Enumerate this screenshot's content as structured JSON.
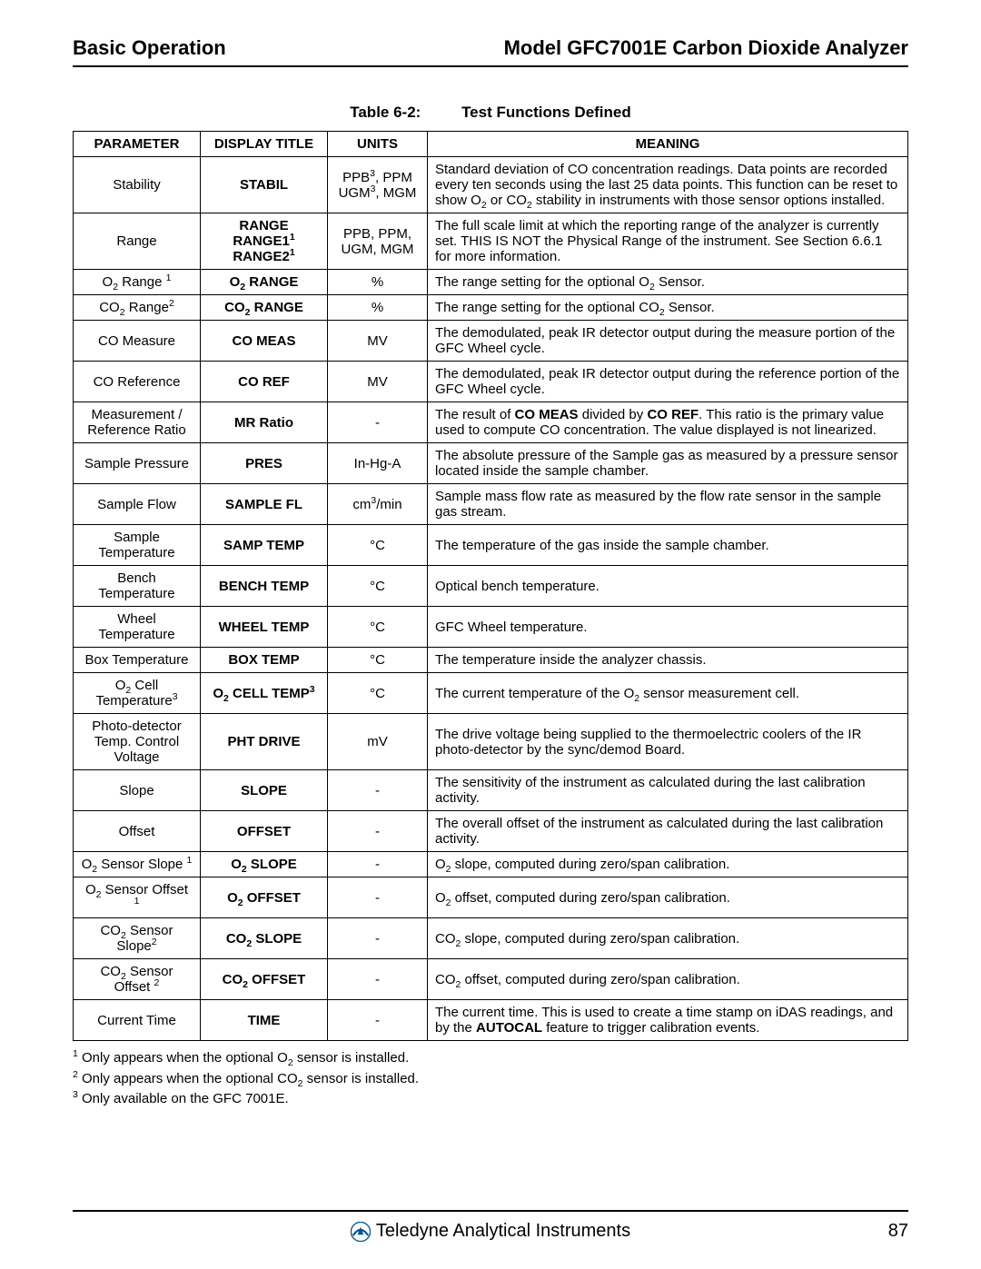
{
  "header": {
    "left": "Basic Operation",
    "right": "Model GFC7001E Carbon Dioxide Analyzer"
  },
  "table": {
    "label": "Table 6-2:",
    "title": "Test Functions Defined",
    "columns": [
      "PARAMETER",
      "DISPLAY TITLE",
      "UNITS",
      "MEANING"
    ],
    "rows": [
      {
        "parameter": "Stability",
        "display": "STABIL",
        "units": "PPB<sup>3</sup>, PPM UGM<sup>3</sup>, MGM",
        "meaning": "Standard deviation of CO concentration readings.  Data points are recorded every ten seconds using the last 25 data points.  This function can be reset to show O<sub>2</sub> or CO<sub>2</sub> stability in instruments with those sensor options installed."
      },
      {
        "parameter": "Range",
        "display": "RANGE<br>RANGE1<sup>1</sup><br>RANGE2<sup>1</sup>",
        "units": "PPB, PPM, UGM, MGM",
        "meaning": "The full scale limit at which the reporting range of the analyzer is currently set.  THIS IS NOT the Physical Range of the instrument.  See Section 6.6.1 for more information."
      },
      {
        "parameter": "O<sub>2</sub> Range <sup>1</sup>",
        "display": "O<sub>2</sub> RANGE",
        "units": "%",
        "meaning": "The range setting for the optional O<sub>2</sub> Sensor."
      },
      {
        "parameter": "CO<sub>2</sub> Range<sup>2</sup>",
        "display": "CO<sub>2</sub> RANGE",
        "units": "%",
        "meaning": "The range setting for the optional CO<sub>2</sub> Sensor."
      },
      {
        "parameter": "CO Measure",
        "display": "CO MEAS",
        "units": "MV",
        "meaning": "The demodulated, peak IR detector output during the measure portion of the GFC Wheel cycle."
      },
      {
        "parameter": "CO Reference",
        "display": "CO REF",
        "units": "MV",
        "meaning": "The demodulated, peak IR detector output during the reference portion of the GFC Wheel cycle."
      },
      {
        "parameter": "Measurement / Reference Ratio",
        "display": "MR Ratio",
        "units": "-",
        "meaning": "The result of <b>CO MEAS</b> divided by <b>CO REF</b>.  This ratio is the primary value used to compute CO concentration.  The value displayed is not linearized."
      },
      {
        "parameter": "Sample Pressure",
        "display": "PRES",
        "units": "In-Hg-A",
        "meaning": "The absolute pressure of the Sample gas as measured by a pressure sensor located inside the sample chamber."
      },
      {
        "parameter": "Sample Flow",
        "display": "SAMPLE FL",
        "units": "cm<sup>3</sup>/min",
        "meaning": "Sample mass flow rate as measured by the flow rate sensor in the sample gas stream."
      },
      {
        "parameter": "Sample Temperature",
        "display": "SAMP TEMP",
        "units": "°C",
        "meaning": "The temperature of the gas inside the sample chamber."
      },
      {
        "parameter": "Bench Temperature",
        "display": "BENCH TEMP",
        "units": "°C",
        "meaning": "Optical bench temperature."
      },
      {
        "parameter": "Wheel Temperature",
        "display": "WHEEL TEMP",
        "units": "°C",
        "meaning": "GFC Wheel temperature."
      },
      {
        "parameter": "Box Temperature",
        "display": "BOX TEMP",
        "units": "°C",
        "meaning": "The temperature inside the analyzer chassis."
      },
      {
        "parameter": "O<sub>2</sub> Cell Temperature<sup>3</sup>",
        "display": "O<sub>2</sub> CELL TEMP<sup>3</sup>",
        "units": "°C",
        "meaning": "The current temperature of the O<sub>2</sub> sensor measurement cell."
      },
      {
        "parameter": "Photo-detector Temp. Control Voltage",
        "display": "PHT DRIVE",
        "units": "mV",
        "meaning": "The drive voltage being supplied to the thermoelectric coolers of the IR photo-detector by the sync/demod Board."
      },
      {
        "parameter": "Slope",
        "display": "SLOPE",
        "units": "-",
        "meaning": "The sensitivity of the instrument as calculated during the last calibration activity."
      },
      {
        "parameter": "Offset",
        "display": "OFFSET",
        "units": "-",
        "meaning": "The overall offset of the instrument as calculated during the last calibration activity."
      },
      {
        "parameter": "O<sub>2</sub> Sensor Slope <sup>1</sup>",
        "display": "O<sub>2</sub> SLOPE",
        "units": "-",
        "meaning": "O<sub>2</sub> slope, computed during zero/span calibration."
      },
      {
        "parameter": "O<sub>2</sub> Sensor Offset <sup>1</sup>",
        "display": "O<sub>2</sub> OFFSET",
        "units": "-",
        "meaning": "O<sub>2</sub> offset, computed during zero/span calibration."
      },
      {
        "parameter": "CO<sub>2</sub> Sensor Slope<sup>2</sup>",
        "display": "CO<sub>2</sub> SLOPE",
        "units": "-",
        "meaning": "CO<sub>2</sub> slope, computed during zero/span calibration."
      },
      {
        "parameter": "CO<sub>2</sub> Sensor Offset <sup>2</sup>",
        "display": "CO<sub>2</sub> OFFSET",
        "units": "-",
        "meaning": "CO<sub>2</sub> offset, computed during zero/span calibration."
      },
      {
        "parameter": "Current Time",
        "display": "TIME",
        "units": "-",
        "meaning": "The current time.  This is used to create a time stamp on iDAS readings, and by the <b>AUTOCAL</b> feature to trigger calibration events."
      }
    ]
  },
  "footnotes": [
    "<sup>1</sup> Only appears when the optional O<sub>2</sub> sensor is installed.",
    "<sup>2</sup> Only appears when the optional CO<sub>2</sub> sensor is installed.",
    "<sup>3</sup> Only available on the GFC 7001E."
  ],
  "footer": {
    "company": "Teledyne Analytical Instruments",
    "page": "87",
    "logo_color": "#00558c"
  }
}
